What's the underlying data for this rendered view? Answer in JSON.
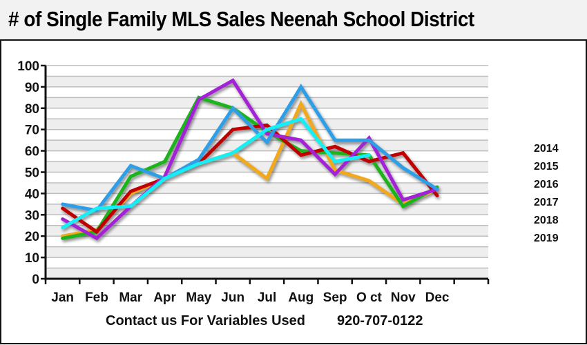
{
  "title": "# of Single Family MLS Sales Neenah School District",
  "footer": {
    "contact": "Contact us For Variables Used",
    "phone": "920-707-0122"
  },
  "chart_data": {
    "type": "line",
    "title": "# of Single Family MLS Sales Neenah School District",
    "xlabel": "",
    "ylabel": "",
    "ylim": [
      0,
      100
    ],
    "yticks": [
      0,
      10,
      20,
      30,
      40,
      50,
      60,
      70,
      80,
      90,
      100
    ],
    "grid": true,
    "legend_position": "right",
    "categories": [
      "Jan",
      "Feb",
      "Mar",
      "Apr",
      "May",
      "Jun",
      "Jul",
      "Aug",
      "Sep",
      "O ct",
      "Nov",
      "Dec"
    ],
    "series": [
      {
        "name": "2014",
        "color": "#f2a81d",
        "values": [
          20,
          23,
          40,
          47,
          54,
          59,
          47,
          82,
          51,
          46,
          35,
          42
        ]
      },
      {
        "name": "2015",
        "color": "#1fb31f",
        "values": [
          19,
          22,
          48,
          55,
          85,
          80,
          69,
          60,
          59,
          58,
          34,
          43
        ]
      },
      {
        "name": "2016",
        "color": "#c00000",
        "values": [
          33,
          22,
          41,
          47,
          54,
          70,
          72,
          58,
          62,
          55,
          59,
          39
        ]
      },
      {
        "name": "2017",
        "color": "#a424d6",
        "values": [
          28,
          19,
          34,
          48,
          84,
          93,
          68,
          65,
          49,
          66,
          37,
          42
        ]
      },
      {
        "name": "2018",
        "color": "#2e9ee6",
        "values": [
          35,
          32,
          53,
          47,
          56,
          80,
          64,
          90,
          65,
          65,
          52,
          42
        ]
      },
      {
        "name": "2019",
        "color": "#19eef5",
        "values": [
          24,
          33,
          34,
          47,
          54,
          59,
          70,
          75,
          55,
          58,
          null,
          null
        ]
      }
    ]
  }
}
